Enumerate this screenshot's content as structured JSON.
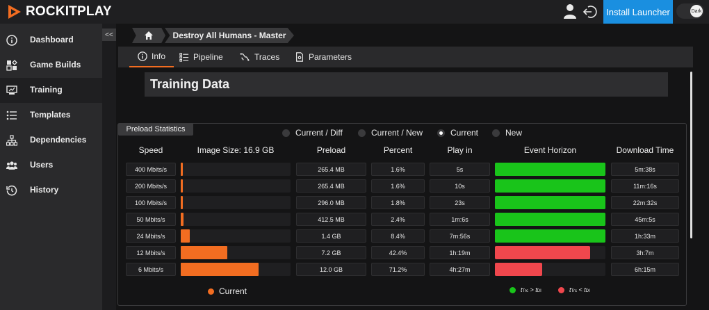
{
  "app": {
    "logo": "ROCKITPLAY"
  },
  "topbar": {
    "install_label": "Install Launcher",
    "theme_label": "Dark"
  },
  "sidebar": {
    "collapse_label": "<<",
    "items": [
      {
        "label": "Dashboard",
        "icon": "info-icon"
      },
      {
        "label": "Game Builds",
        "icon": "game-builds-icon"
      },
      {
        "label": "Training",
        "icon": "training-icon",
        "active": true
      },
      {
        "label": "Templates",
        "icon": "templates-icon"
      },
      {
        "label": "Dependencies",
        "icon": "dependencies-icon"
      },
      {
        "label": "Users",
        "icon": "users-icon"
      },
      {
        "label": "History",
        "icon": "history-icon"
      }
    ]
  },
  "breadcrumb": {
    "page": "Destroy All Humans - Master"
  },
  "tabs": [
    {
      "label": "Info",
      "icon": "info-icon",
      "active": true
    },
    {
      "label": "Pipeline",
      "icon": "pipeline-icon"
    },
    {
      "label": "Traces",
      "icon": "traces-icon"
    },
    {
      "label": "Parameters",
      "icon": "parameters-icon"
    }
  ],
  "section": {
    "title": "Training Data"
  },
  "preload": {
    "title": "Preload Statistics",
    "options": [
      {
        "label": "Current / Diff",
        "selected": false
      },
      {
        "label": "Current / New",
        "selected": false
      },
      {
        "label": "Current",
        "selected": true
      },
      {
        "label": "New",
        "selected": false
      }
    ],
    "headers": {
      "speed": "Speed",
      "image_size": "Image Size: 16.9 GB",
      "preload": "Preload",
      "percent": "Percent",
      "play_in": "Play in",
      "event_horizon": "Event Horizon",
      "download_time": "Download Time"
    },
    "rows": [
      {
        "speed": "400 Mbits/s",
        "preload": "265.4 MB",
        "percent": "1.6%",
        "percent_value": 1.6,
        "play_in": "5s",
        "event_horizon_status": "green",
        "download_time": "5m:38s"
      },
      {
        "speed": "200 Mbits/s",
        "preload": "265.4 MB",
        "percent": "1.6%",
        "percent_value": 1.6,
        "play_in": "10s",
        "event_horizon_status": "green",
        "download_time": "11m:16s"
      },
      {
        "speed": "100 Mbits/s",
        "preload": "296.0 MB",
        "percent": "1.8%",
        "percent_value": 1.8,
        "play_in": "23s",
        "event_horizon_status": "green",
        "download_time": "22m:32s"
      },
      {
        "speed": "50 Mbits/s",
        "preload": "412.5 MB",
        "percent": "2.4%",
        "percent_value": 2.4,
        "play_in": "1m:6s",
        "event_horizon_status": "green",
        "download_time": "45m:5s"
      },
      {
        "speed": "24 Mbits/s",
        "preload": "1.4 GB",
        "percent": "8.4%",
        "percent_value": 8.4,
        "play_in": "7m:56s",
        "event_horizon_status": "green",
        "download_time": "1h:33m"
      },
      {
        "speed": "12 Mbits/s",
        "preload": "7.2 GB",
        "percent": "42.4%",
        "percent_value": 42.4,
        "play_in": "1h:19m",
        "event_horizon_status": "red",
        "event_horizon_fill": 0.86,
        "download_time": "3h:7m"
      },
      {
        "speed": "6 Mbits/s",
        "preload": "12.0 GB",
        "percent": "71.2%",
        "percent_value": 71.2,
        "play_in": "4h:27m",
        "event_horizon_status": "red",
        "event_horizon_fill": 0.43,
        "download_time": "6h:15m"
      }
    ],
    "legend": {
      "current": "Current",
      "green_t1": "t",
      "green_s1": "Trc",
      "green_op": " > ",
      "green_t2": "t",
      "green_s2": "DI",
      "red_t1": "t",
      "red_s1": "Trc",
      "red_op": " < ",
      "red_t2": "t",
      "red_s2": "DI"
    }
  },
  "colors": {
    "accent": "#f26d21",
    "green": "#19c41a",
    "red": "#f0474d",
    "install": "#1a8fe0"
  }
}
